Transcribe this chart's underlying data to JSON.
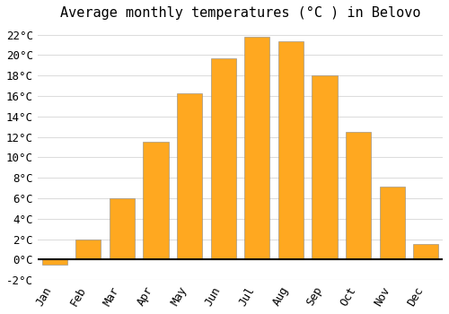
{
  "title": "Average monthly temperatures (°C ) in Belovo",
  "months": [
    "Jan",
    "Feb",
    "Mar",
    "Apr",
    "May",
    "Jun",
    "Jul",
    "Aug",
    "Sep",
    "Oct",
    "Nov",
    "Dec"
  ],
  "values": [
    -0.5,
    2.0,
    6.0,
    11.5,
    16.3,
    19.7,
    21.8,
    21.4,
    18.0,
    12.5,
    7.1,
    1.5
  ],
  "bar_color": "#FFA820",
  "bar_edge_color": "#888888",
  "background_color": "#FFFFFF",
  "grid_color": "#DDDDDD",
  "ylim": [
    -2,
    23
  ],
  "yticks": [
    -2,
    0,
    2,
    4,
    6,
    8,
    10,
    12,
    14,
    16,
    18,
    20,
    22
  ],
  "title_fontsize": 11,
  "tick_fontsize": 9
}
